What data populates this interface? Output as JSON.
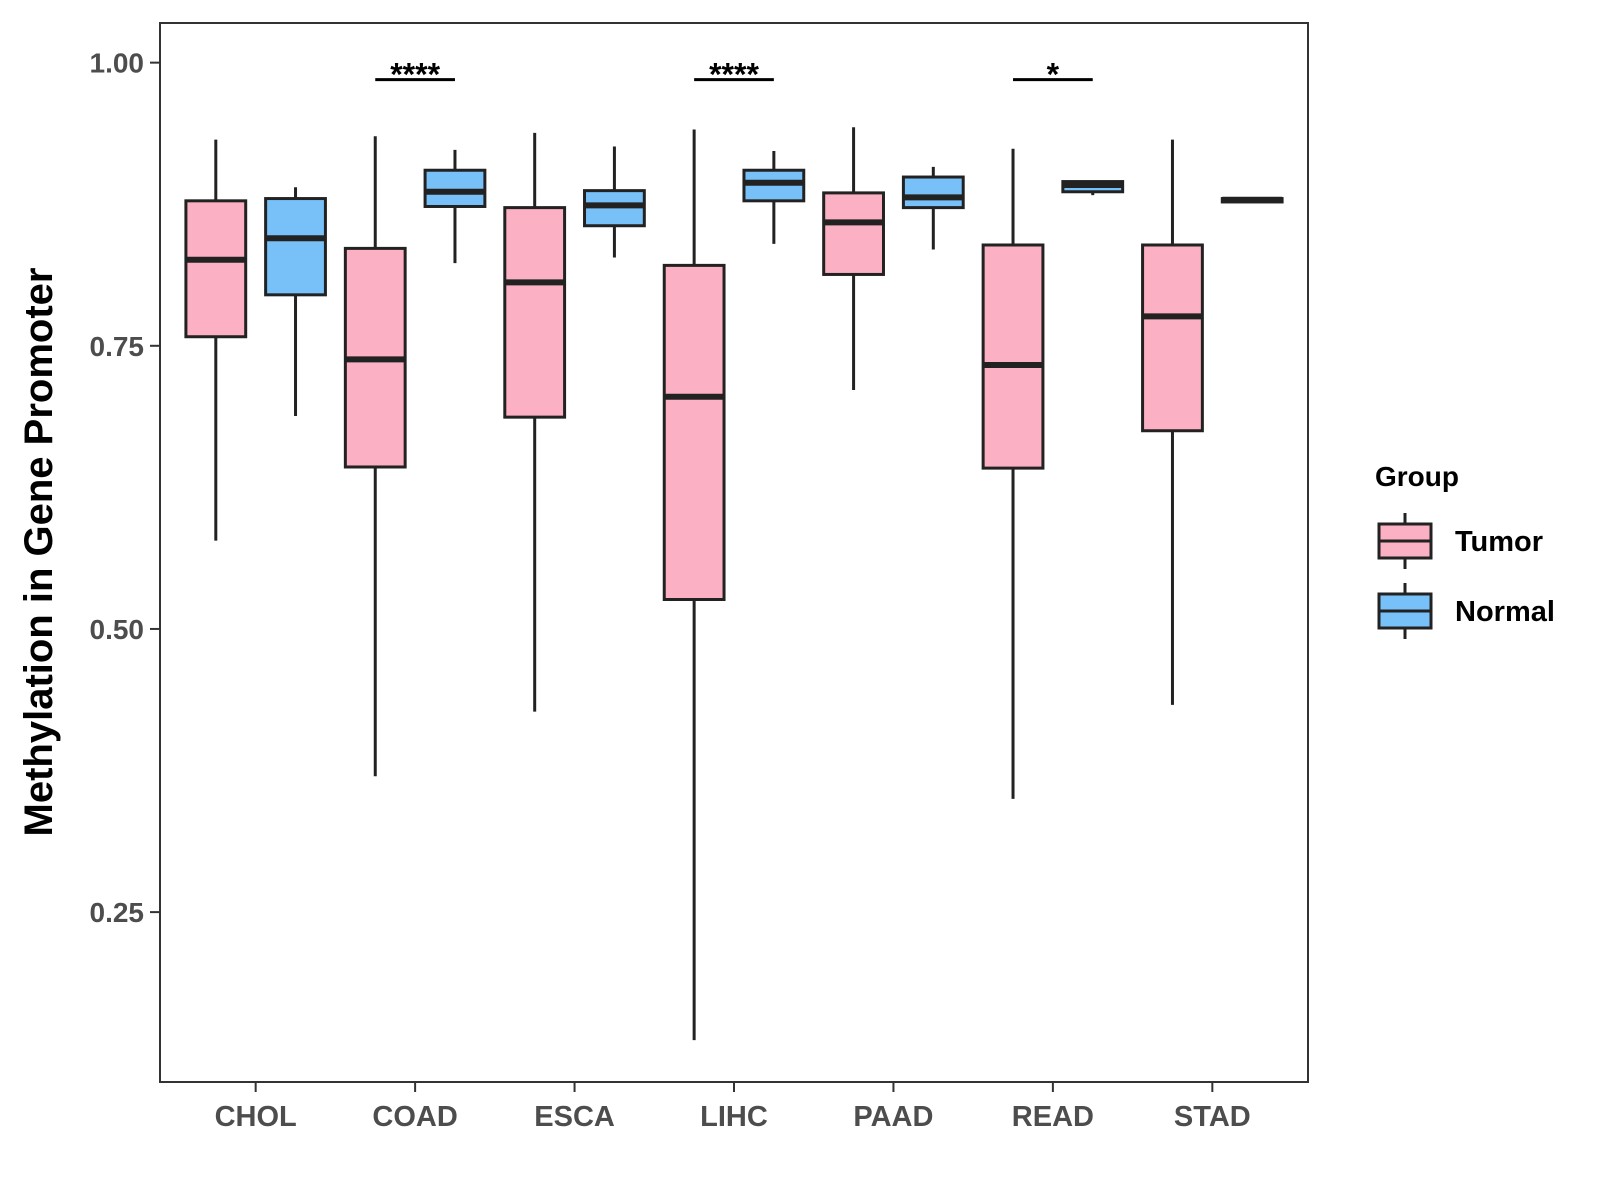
{
  "chart_data": {
    "type": "boxplot",
    "ylabel": "Methylation in Gene Promoter",
    "xlabel": "",
    "ylim": [
      0.1,
      1.035
    ],
    "yticks": [
      0.25,
      0.5,
      0.75,
      1.0
    ],
    "ytick_labels": [
      "0.25",
      "0.50",
      "0.75",
      "1.00"
    ],
    "categories": [
      "CHOL",
      "COAD",
      "ESCA",
      "LIHC",
      "PAAD",
      "READ",
      "STAD"
    ],
    "legend": {
      "title": "Group",
      "position": "right",
      "entries": [
        {
          "name": "Tumor",
          "color": "#FCB0C3"
        },
        {
          "name": "Normal",
          "color": "#78C1F8"
        }
      ]
    },
    "series": [
      {
        "name": "Tumor",
        "color": "#FCB0C3",
        "boxes": [
          {
            "category": "CHOL",
            "min": 0.578,
            "q1": 0.758,
            "median": 0.826,
            "q3": 0.878,
            "max": 0.932
          },
          {
            "category": "COAD",
            "min": 0.37,
            "q1": 0.643,
            "median": 0.738,
            "q3": 0.836,
            "max": 0.935
          },
          {
            "category": "ESCA",
            "min": 0.427,
            "q1": 0.687,
            "median": 0.806,
            "q3": 0.872,
            "max": 0.938
          },
          {
            "category": "LIHC",
            "min": 0.137,
            "q1": 0.526,
            "median": 0.705,
            "q3": 0.821,
            "max": 0.941
          },
          {
            "category": "PAAD",
            "min": 0.711,
            "q1": 0.813,
            "median": 0.859,
            "q3": 0.885,
            "max": 0.943
          },
          {
            "category": "READ",
            "min": 0.35,
            "q1": 0.642,
            "median": 0.733,
            "q3": 0.839,
            "max": 0.924
          },
          {
            "category": "STAD",
            "min": 0.433,
            "q1": 0.675,
            "median": 0.776,
            "q3": 0.839,
            "max": 0.932
          }
        ]
      },
      {
        "name": "Normal",
        "color": "#78C1F8",
        "boxes": [
          {
            "category": "CHOL",
            "min": 0.688,
            "q1": 0.795,
            "median": 0.845,
            "q3": 0.88,
            "max": 0.89
          },
          {
            "category": "COAD",
            "min": 0.823,
            "q1": 0.873,
            "median": 0.886,
            "q3": 0.905,
            "max": 0.923
          },
          {
            "category": "ESCA",
            "min": 0.828,
            "q1": 0.856,
            "median": 0.874,
            "q3": 0.887,
            "max": 0.926
          },
          {
            "category": "LIHC",
            "min": 0.84,
            "q1": 0.878,
            "median": 0.894,
            "q3": 0.905,
            "max": 0.922
          },
          {
            "category": "PAAD",
            "min": 0.835,
            "q1": 0.872,
            "median": 0.881,
            "q3": 0.899,
            "max": 0.908
          },
          {
            "category": "READ",
            "min": 0.883,
            "q1": 0.886,
            "median": 0.892,
            "q3": 0.895,
            "max": 0.895
          },
          {
            "category": "STAD",
            "min": 0.877,
            "q1": 0.877,
            "median": 0.879,
            "q3": 0.88,
            "max": 0.88
          }
        ]
      }
    ],
    "annotations": [
      {
        "category": "COAD",
        "label": "****"
      },
      {
        "category": "LIHC",
        "label": "****"
      },
      {
        "category": "READ",
        "label": "*"
      }
    ],
    "grid": false
  }
}
